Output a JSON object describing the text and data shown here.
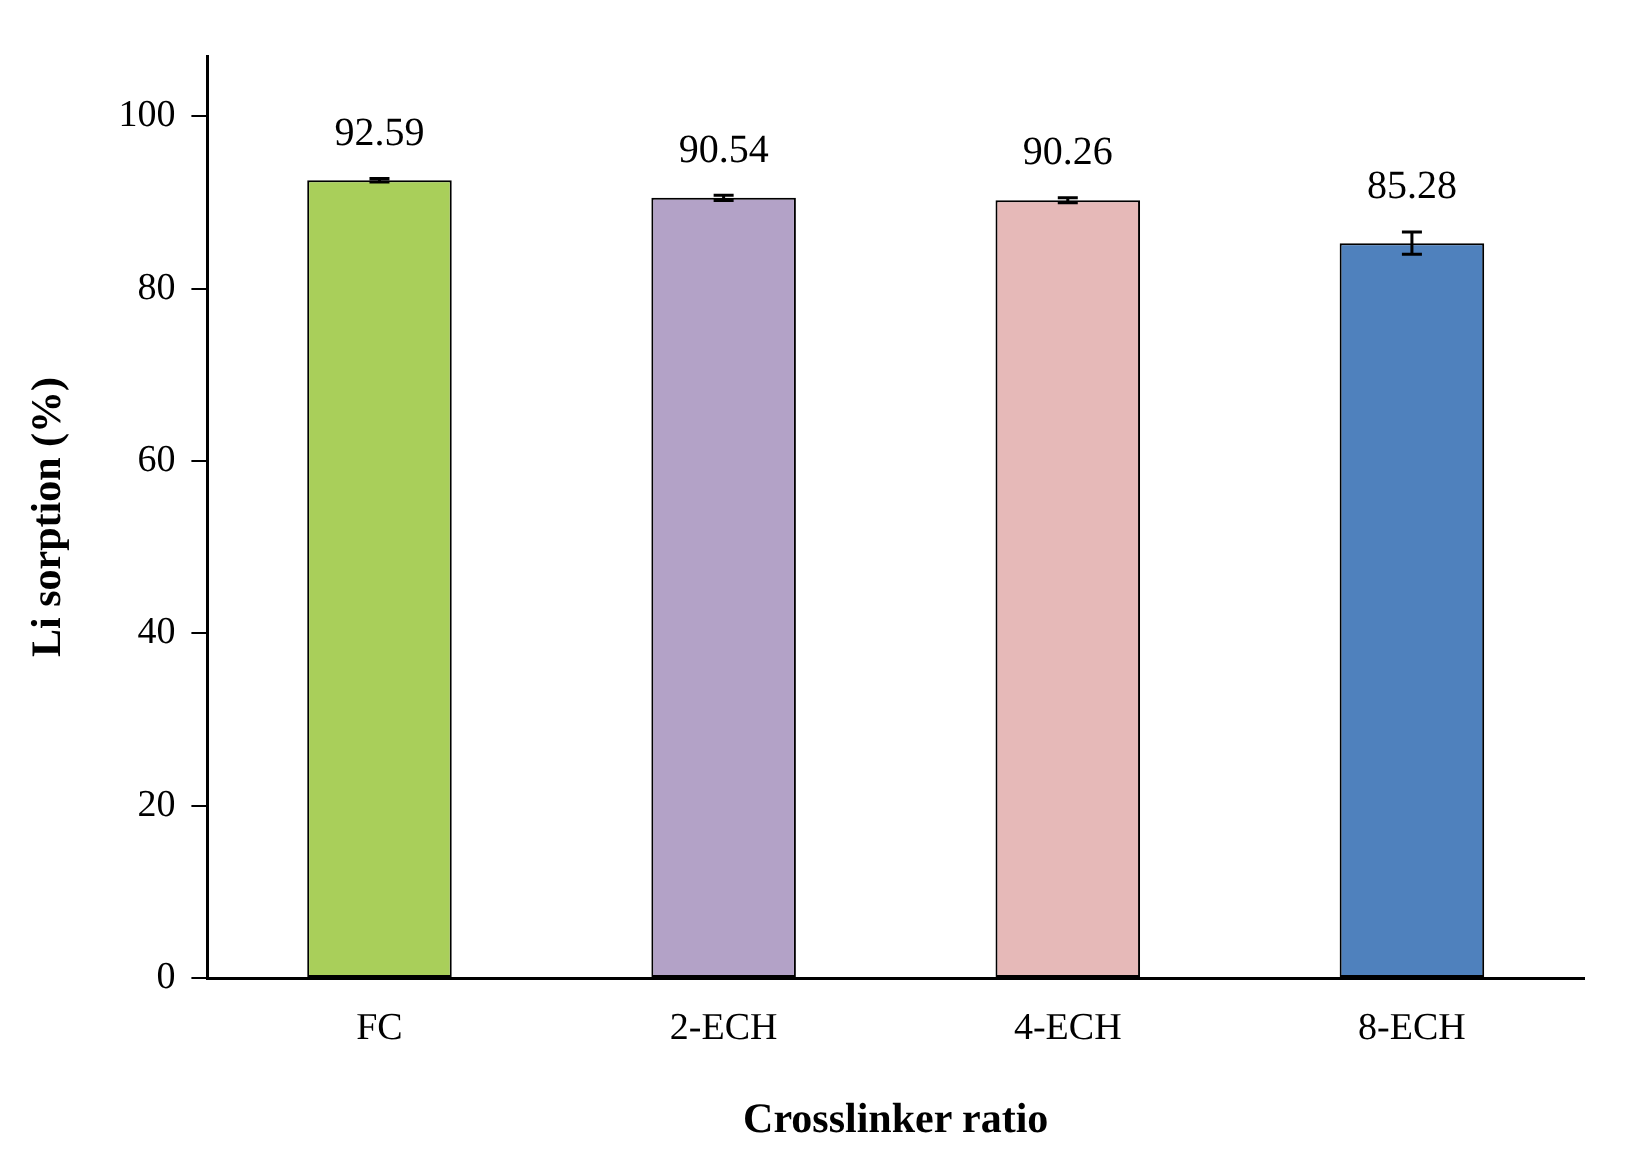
{
  "chart_data": {
    "type": "bar",
    "xlabel": "Crosslinker ratio",
    "ylabel": "Li sorption (%)",
    "categories": [
      "FC",
      "2-ECH",
      "4-ECH",
      "8-ECH"
    ],
    "values": [
      92.59,
      90.54,
      90.26,
      85.28
    ],
    "errors": [
      0.2,
      0.3,
      0.3,
      1.3
    ],
    "colors": [
      "#a9cf5a",
      "#b3a2c7",
      "#e6b9b8",
      "#4f81bd"
    ],
    "ylim": [
      0,
      107
    ],
    "yticks": [
      0,
      20,
      40,
      60,
      80,
      100
    ],
    "data_labels": true,
    "grid": false,
    "legend": false
  }
}
